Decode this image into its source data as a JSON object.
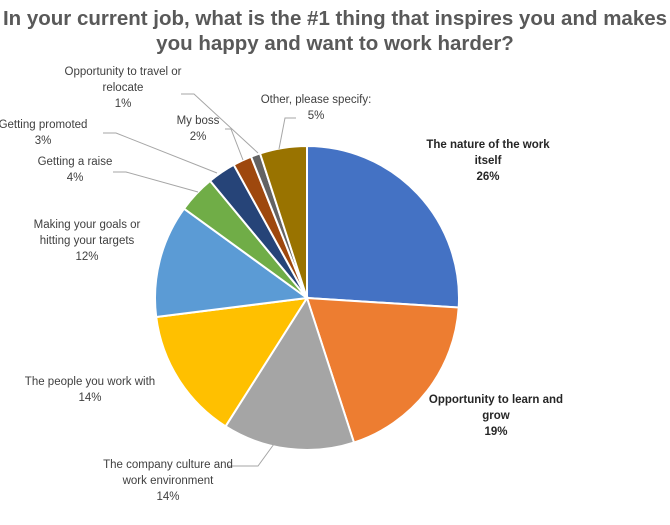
{
  "chart_data": {
    "type": "pie",
    "title_lines": [
      "In your current job, what is the #1 thing that inspires you and makes",
      "you happy and want to work harder?"
    ],
    "start_angle_deg": 0,
    "direction": "clockwise",
    "slices": [
      {
        "label_lines": [
          "The nature of the work",
          "itself"
        ],
        "value": 26,
        "value_text": "26%",
        "color": "#4472C4"
      },
      {
        "label_lines": [
          "Opportunity to learn and",
          "grow"
        ],
        "value": 19,
        "value_text": "19%",
        "color": "#ED7D31"
      },
      {
        "label_lines": [
          "The company culture and",
          "work environment"
        ],
        "value": 14,
        "value_text": "14%",
        "color": "#A5A5A5"
      },
      {
        "label_lines": [
          "The people you work with"
        ],
        "value": 14,
        "value_text": "14%",
        "color": "#FFC000"
      },
      {
        "label_lines": [
          "Making your goals or",
          "hitting your targets"
        ],
        "value": 12,
        "value_text": "12%",
        "color": "#5B9BD5"
      },
      {
        "label_lines": [
          "Getting a raise"
        ],
        "value": 4,
        "value_text": "4%",
        "color": "#70AD47"
      },
      {
        "label_lines": [
          "Getting promoted"
        ],
        "value": 3,
        "value_text": "3%",
        "color": "#264478"
      },
      {
        "label_lines": [
          "My boss"
        ],
        "value": 2,
        "value_text": "2%",
        "color": "#9E480E"
      },
      {
        "label_lines": [
          "Opportunity to travel or",
          "relocate"
        ],
        "value": 1,
        "value_text": "1%",
        "color": "#636363"
      },
      {
        "label_lines": [
          "Other, please specify:"
        ],
        "value": 5,
        "value_text": "5%",
        "color": "#997300"
      }
    ]
  }
}
